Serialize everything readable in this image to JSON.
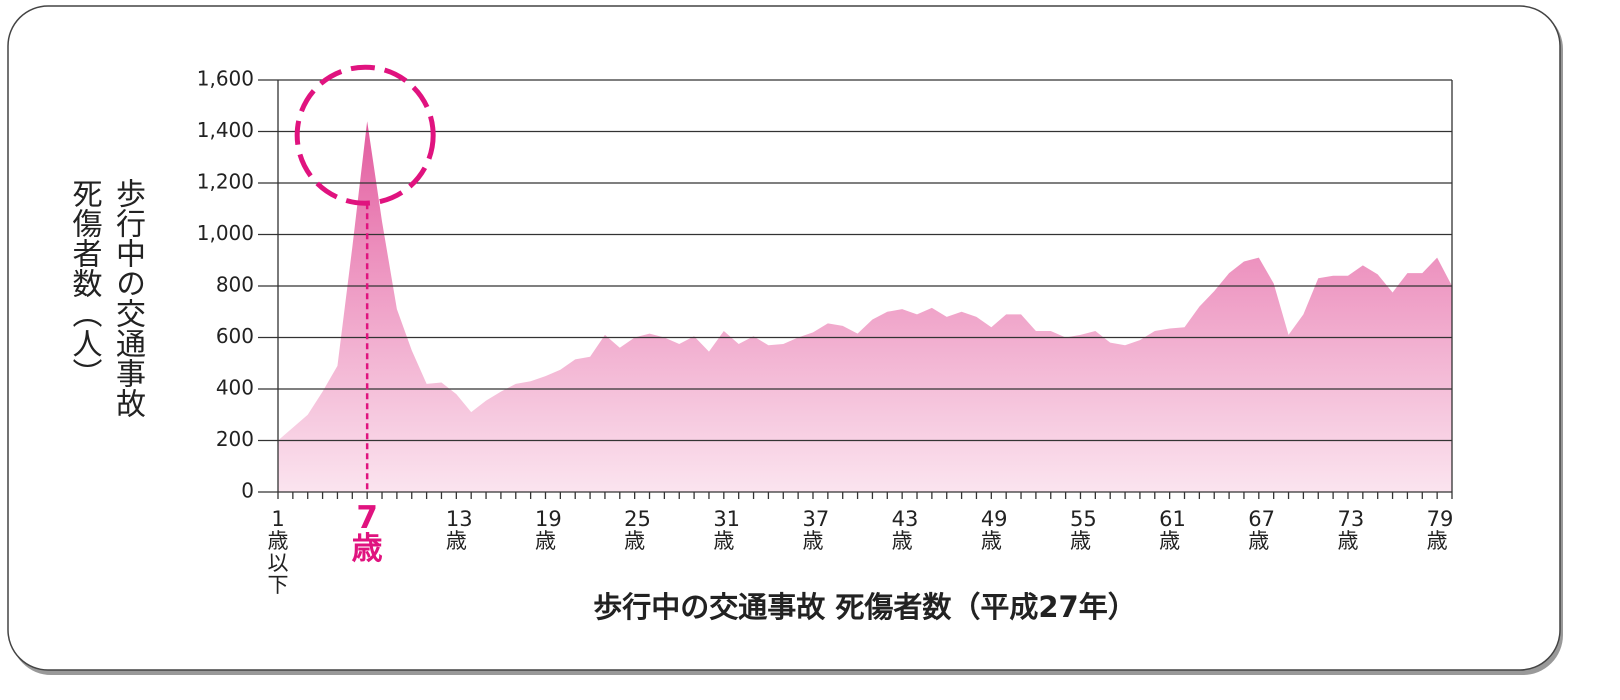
{
  "chart_data": {
    "type": "area",
    "title": "歩行中の交通事故 死傷者数（平成27年）",
    "y_label": [
      "歩行中の交通事故",
      "死傷者数（人）"
    ],
    "categories": [
      "1歳以下",
      null,
      null,
      null,
      null,
      null,
      "7歳",
      null,
      null,
      null,
      null,
      null,
      "13歳",
      null,
      null,
      null,
      null,
      null,
      "19歳",
      null,
      null,
      null,
      null,
      null,
      "25歳",
      null,
      null,
      null,
      null,
      null,
      "31歳",
      null,
      null,
      null,
      null,
      null,
      "37歳",
      null,
      null,
      null,
      null,
      null,
      "43歳",
      null,
      null,
      null,
      null,
      null,
      "49歳",
      null,
      null,
      null,
      null,
      null,
      "55歳",
      null,
      null,
      null,
      null,
      null,
      "61歳",
      null,
      null,
      null,
      null,
      null,
      "67歳",
      null,
      null,
      null,
      null,
      null,
      "73歳",
      null,
      null,
      null,
      null,
      null,
      "79歳",
      null
    ],
    "values": [
      200,
      250,
      300,
      390,
      490,
      950,
      1440,
      1050,
      710,
      550,
      420,
      425,
      380,
      310,
      355,
      390,
      420,
      430,
      450,
      475,
      515,
      525,
      610,
      560,
      600,
      615,
      600,
      575,
      605,
      545,
      625,
      575,
      605,
      570,
      575,
      600,
      620,
      655,
      645,
      615,
      670,
      700,
      710,
      690,
      715,
      680,
      700,
      680,
      640,
      690,
      690,
      625,
      625,
      600,
      610,
      625,
      580,
      570,
      590,
      625,
      635,
      640,
      720,
      780,
      850,
      895,
      910,
      810,
      610,
      690,
      830,
      840,
      840,
      880,
      845,
      775,
      850,
      850,
      910,
      800
    ],
    "color": "#e0559a",
    "ylim": [
      0,
      1600
    ],
    "yticks": [
      0,
      200,
      400,
      600,
      800,
      {
        "value": 1000,
        "label": "1,000"
      },
      {
        "value": 1200,
        "label": "1,200"
      },
      {
        "value": 1400,
        "label": "1,400"
      },
      {
        "value": 1600,
        "label": "1,600"
      }
    ],
    "grid": true,
    "highlight": {
      "index": 6,
      "color": "#e0137f"
    }
  }
}
